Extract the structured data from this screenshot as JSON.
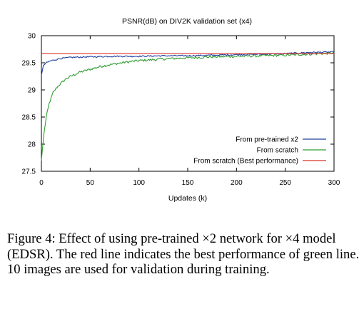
{
  "chart_data": {
    "type": "line",
    "title": "PSNR(dB) on DIV2K validation set (x4)",
    "xlabel": "Updates (k)",
    "ylabel": "",
    "xlim": [
      0,
      300
    ],
    "ylim": [
      27.5,
      30
    ],
    "xticks": [
      0,
      50,
      100,
      150,
      200,
      250,
      300
    ],
    "xtick_labels": [
      "0",
      "50",
      "100",
      "150",
      "200",
      "250",
      "300"
    ],
    "yticks": [
      27.5,
      28,
      28.5,
      29,
      29.5,
      30
    ],
    "ytick_labels": [
      "27.5",
      "28",
      "28.5",
      "29",
      "29.5",
      "30"
    ],
    "grid": false,
    "legend_position": "bottom-right",
    "series": [
      {
        "name": "From pre-trained x2",
        "color": "#1f3f9e",
        "x": [
          0,
          2,
          5,
          10,
          20,
          30,
          50,
          75,
          100,
          125,
          150,
          175,
          200,
          225,
          250,
          275,
          300
        ],
        "y": [
          29.27,
          29.45,
          29.5,
          29.54,
          29.58,
          29.6,
          29.61,
          29.62,
          29.62,
          29.63,
          29.63,
          29.64,
          29.65,
          29.66,
          29.67,
          29.69,
          29.7
        ]
      },
      {
        "name": "From scratch",
        "color": "#2e9e2e",
        "x": [
          0,
          1,
          3,
          5,
          8,
          12,
          16,
          20,
          25,
          30,
          40,
          50,
          60,
          75,
          90,
          100,
          125,
          150,
          175,
          200,
          225,
          250,
          275,
          300
        ],
        "y": [
          27.7,
          27.9,
          28.25,
          28.5,
          28.75,
          28.95,
          29.05,
          29.12,
          29.2,
          29.25,
          29.33,
          29.38,
          29.43,
          29.48,
          29.52,
          29.54,
          29.57,
          29.59,
          29.61,
          29.62,
          29.63,
          29.64,
          29.66,
          29.68
        ]
      },
      {
        "name": "From scratch (Best performance)",
        "color": "#d9332a",
        "x": [
          0,
          300
        ],
        "y": [
          29.67,
          29.67
        ]
      }
    ]
  },
  "caption": "Figure 4: Effect of using pre-trained ×2 network for ×4 model (EDSR). The red line indicates the best performance of green line. 10 images are used for validation during training."
}
